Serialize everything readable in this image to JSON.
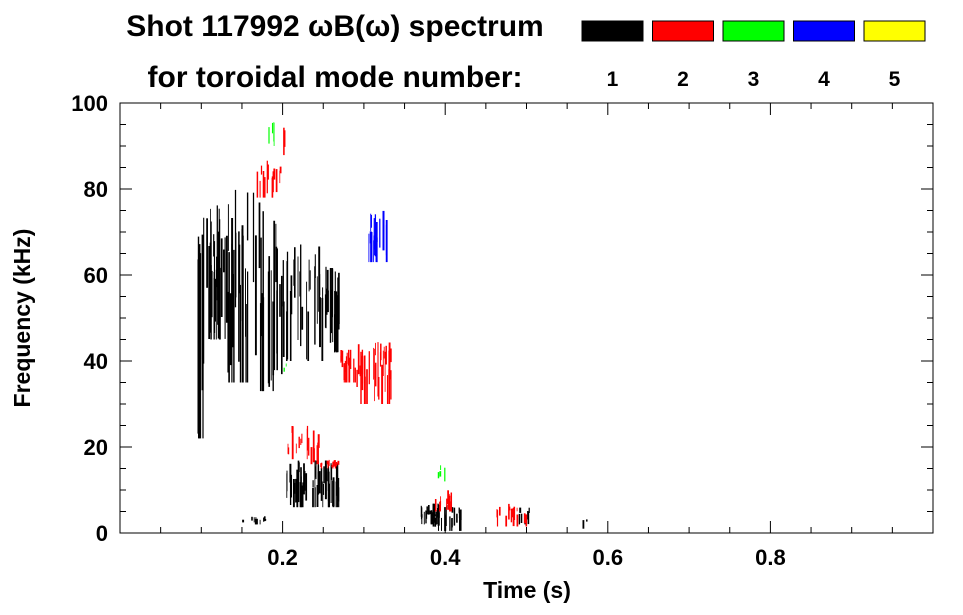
{
  "chart_data": {
    "type": "scatter",
    "title_line1": "Shot 117992 ωB(ω) spectrum",
    "title_line2": "for toroidal mode number:",
    "xlabel": "Time (s)",
    "ylabel": "Frequency (kHz)",
    "xlim": [
      0.0,
      1.0
    ],
    "ylim": [
      0,
      100
    ],
    "x_ticks": [
      {
        "value": 0.2,
        "label": "0.2"
      },
      {
        "value": 0.4,
        "label": "0.4"
      },
      {
        "value": 0.6,
        "label": "0.6"
      },
      {
        "value": 0.8,
        "label": "0.8"
      }
    ],
    "y_ticks": [
      {
        "value": 0,
        "label": "0"
      },
      {
        "value": 20,
        "label": "20"
      },
      {
        "value": 40,
        "label": "40"
      },
      {
        "value": 60,
        "label": "60"
      },
      {
        "value": 80,
        "label": "80"
      },
      {
        "value": 100,
        "label": "100"
      }
    ],
    "grid": false,
    "legend_placement": "top-right",
    "series": [
      {
        "name": "1",
        "color": "#000000",
        "regions": [
          {
            "t0": 0.095,
            "t1": 0.105,
            "f0": 22,
            "f1": 80,
            "density": 0.8
          },
          {
            "t0": 0.105,
            "t1": 0.13,
            "f0": 45,
            "f1": 78,
            "density": 0.9
          },
          {
            "t0": 0.13,
            "t1": 0.165,
            "f0": 35,
            "f1": 80,
            "density": 0.55
          },
          {
            "t0": 0.165,
            "t1": 0.2,
            "f0": 33,
            "f1": 78,
            "density": 0.5
          },
          {
            "t0": 0.2,
            "t1": 0.25,
            "f0": 40,
            "f1": 68,
            "density": 0.45
          },
          {
            "t0": 0.25,
            "t1": 0.27,
            "f0": 42,
            "f1": 62,
            "density": 0.85
          },
          {
            "t0": 0.205,
            "t1": 0.27,
            "f0": 6,
            "f1": 17,
            "density": 0.75
          },
          {
            "t0": 0.37,
            "t1": 0.395,
            "f0": 2,
            "f1": 7,
            "density": 0.6
          },
          {
            "t0": 0.385,
            "t1": 0.42,
            "f0": 0.5,
            "f1": 7,
            "density": 0.8
          },
          {
            "t0": 0.15,
            "t1": 0.18,
            "f0": 2,
            "f1": 4,
            "density": 0.3
          },
          {
            "t0": 0.49,
            "t1": 0.51,
            "f0": 2,
            "f1": 6,
            "density": 0.3
          },
          {
            "t0": 0.57,
            "t1": 0.575,
            "f0": 1,
            "f1": 4,
            "density": 0.3
          }
        ]
      },
      {
        "name": "2",
        "color": "#ff0000",
        "regions": [
          {
            "t0": 0.165,
            "t1": 0.2,
            "f0": 78,
            "f1": 87,
            "density": 0.35
          },
          {
            "t0": 0.27,
            "t1": 0.29,
            "f0": 35,
            "f1": 43,
            "density": 0.8
          },
          {
            "t0": 0.29,
            "t1": 0.335,
            "f0": 30,
            "f1": 45,
            "density": 0.65
          },
          {
            "t0": 0.205,
            "t1": 0.245,
            "f0": 16,
            "f1": 25,
            "density": 0.4
          },
          {
            "t0": 0.245,
            "t1": 0.27,
            "f0": 15,
            "f1": 17,
            "density": 0.6
          },
          {
            "t0": 0.385,
            "t1": 0.41,
            "f0": 5,
            "f1": 10,
            "density": 0.35
          },
          {
            "t0": 0.46,
            "t1": 0.5,
            "f0": 1.5,
            "f1": 7,
            "density": 0.3
          },
          {
            "t0": 0.2,
            "t1": 0.205,
            "f0": 86,
            "f1": 95,
            "density": 0.3
          }
        ]
      },
      {
        "name": "3",
        "color": "#00ff00",
        "regions": [
          {
            "t0": 0.18,
            "t1": 0.192,
            "f0": 90,
            "f1": 97,
            "density": 0.3
          },
          {
            "t0": 0.39,
            "t1": 0.4,
            "f0": 12,
            "f1": 16,
            "density": 0.35
          },
          {
            "t0": 0.2,
            "t1": 0.205,
            "f0": 37,
            "f1": 40,
            "density": 0.2
          }
        ]
      },
      {
        "name": "4",
        "color": "#0000ff",
        "regions": [
          {
            "t0": 0.305,
            "t1": 0.33,
            "f0": 63,
            "f1": 75,
            "density": 0.6
          }
        ]
      },
      {
        "name": "5",
        "color": "#ffff00",
        "regions": []
      }
    ]
  }
}
